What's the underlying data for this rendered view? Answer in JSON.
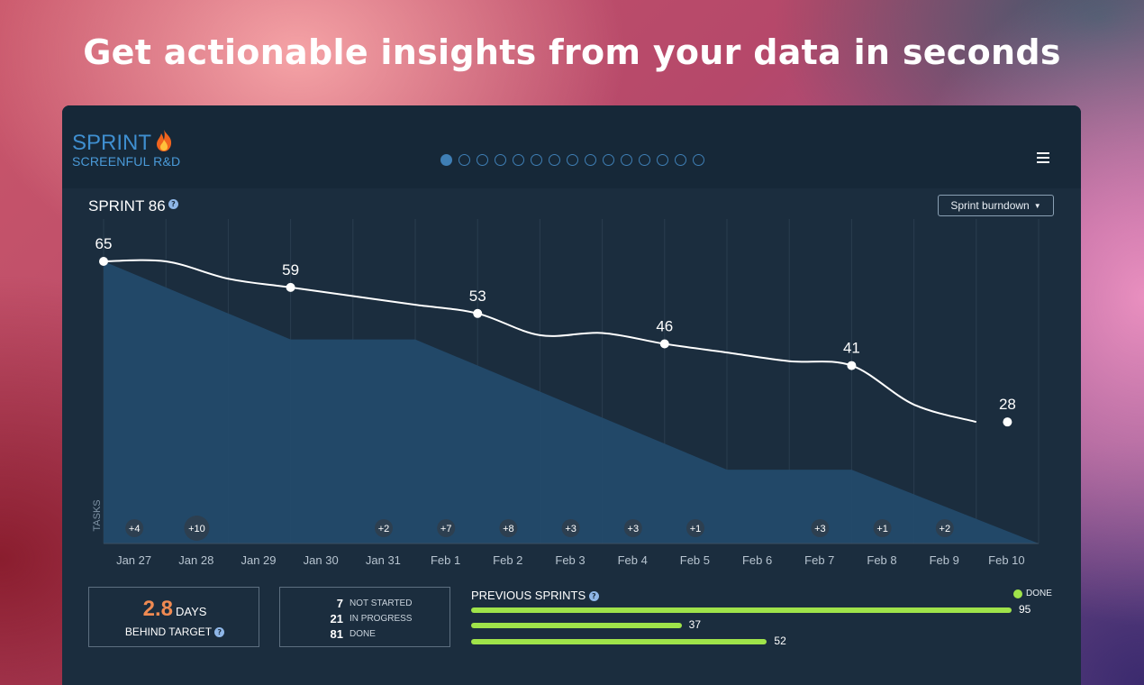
{
  "headline": "Get actionable insights from your data in seconds",
  "brand": {
    "title": "SPRINT",
    "subtitle": "SCREENFUL R&D",
    "icon": "flame-icon"
  },
  "pager": {
    "total": 15,
    "active": 0
  },
  "sprint_label": "SPRINT 86",
  "view_dropdown": "Sprint burndown",
  "chart_data": {
    "type": "line",
    "title": "SPRINT 86",
    "ylabel": "TASKS",
    "x_labels": [
      "Jan 27",
      "Jan 28",
      "Jan 29",
      "Jan 30",
      "Jan 31",
      "Feb 1",
      "Feb 2",
      "Feb 3",
      "Feb 4",
      "Feb 5",
      "Feb 6",
      "Feb 7",
      "Feb 8",
      "Feb 9",
      "Feb 10"
    ],
    "ylim": [
      0,
      65
    ],
    "remaining": [
      {
        "x": 0,
        "y": 65
      },
      {
        "x": 1,
        "y": 65
      },
      {
        "x": 2,
        "y": 61
      },
      {
        "x": 3,
        "y": 59
      },
      {
        "x": 4,
        "y": 57
      },
      {
        "x": 5,
        "y": 55
      },
      {
        "x": 6,
        "y": 53
      },
      {
        "x": 7,
        "y": 48
      },
      {
        "x": 8,
        "y": 48.5
      },
      {
        "x": 9,
        "y": 46
      },
      {
        "x": 10,
        "y": 44
      },
      {
        "x": 11,
        "y": 42
      },
      {
        "x": 12,
        "y": 41
      },
      {
        "x": 13,
        "y": 32
      },
      {
        "x": 14,
        "y": 28
      }
    ],
    "labeled_points": [
      {
        "x": 0,
        "y": 65,
        "label": "65"
      },
      {
        "x": 3,
        "y": 59,
        "label": "59"
      },
      {
        "x": 6,
        "y": 53,
        "label": "53"
      },
      {
        "x": 9,
        "y": 46,
        "label": "46"
      },
      {
        "x": 12,
        "y": 41,
        "label": "41"
      },
      {
        "x": 14.5,
        "y": 28,
        "label": "28"
      }
    ],
    "ideal": [
      {
        "x": 0,
        "y": 65
      },
      {
        "x": 3,
        "y": 47
      },
      {
        "x": 5,
        "y": 47
      },
      {
        "x": 10,
        "y": 17
      },
      {
        "x": 12,
        "y": 17
      },
      {
        "x": 15,
        "y": 0
      }
    ],
    "added": [
      {
        "x": 1,
        "label": "+4"
      },
      {
        "x": 2,
        "label": "+10"
      },
      {
        "x": 5,
        "label": "+2"
      },
      {
        "x": 6,
        "label": "+7"
      },
      {
        "x": 7,
        "label": "+8"
      },
      {
        "x": 8,
        "label": "+3"
      },
      {
        "x": 9,
        "label": "+3"
      },
      {
        "x": 10,
        "label": "+1"
      },
      {
        "x": 12,
        "label": "+3"
      },
      {
        "x": 13,
        "label": "+1"
      },
      {
        "x": 14,
        "label": "+2"
      }
    ],
    "colors": {
      "remaining": "#ffffff",
      "ideal_fill": "#234a6a",
      "added_badge": "#2d3f50"
    }
  },
  "behind": {
    "value": "2.8",
    "unit": "DAYS",
    "label": "BEHIND TARGET"
  },
  "status": [
    {
      "count": "7",
      "label": "NOT STARTED"
    },
    {
      "count": "21",
      "label": "IN PROGRESS"
    },
    {
      "count": "81",
      "label": "DONE"
    }
  ],
  "previous_sprints": {
    "title": "PREVIOUS SPRINTS",
    "legend": "DONE",
    "color": "#9fe34a",
    "max": 95,
    "values": [
      "95",
      "37",
      "52"
    ]
  }
}
